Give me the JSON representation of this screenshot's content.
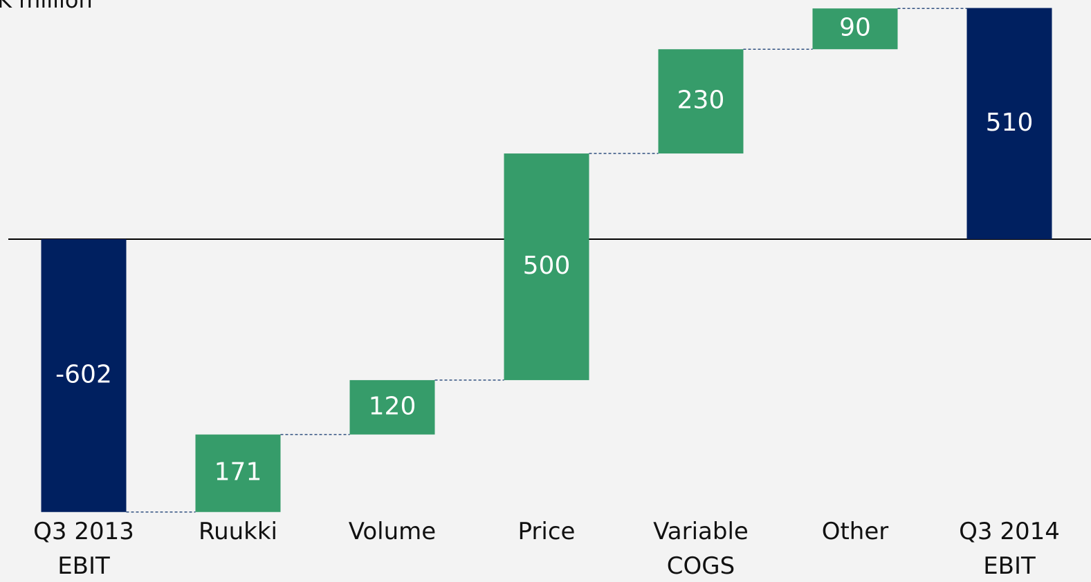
{
  "chart_data": {
    "type": "waterfall",
    "title": "K million",
    "categories": [
      "Q3 2013 EBIT",
      "Ruukki",
      "Volume",
      "Price",
      "Variable COGS",
      "Other",
      "Q3 2014 EBIT"
    ],
    "values": [
      -602,
      171,
      120,
      500,
      230,
      90,
      510
    ],
    "measure": [
      "absolute",
      "relative",
      "relative",
      "relative",
      "relative",
      "relative",
      "total"
    ],
    "colors": {
      "total": "#002060",
      "increase": "#369c6a"
    },
    "ylim": [
      -610,
      520
    ]
  }
}
